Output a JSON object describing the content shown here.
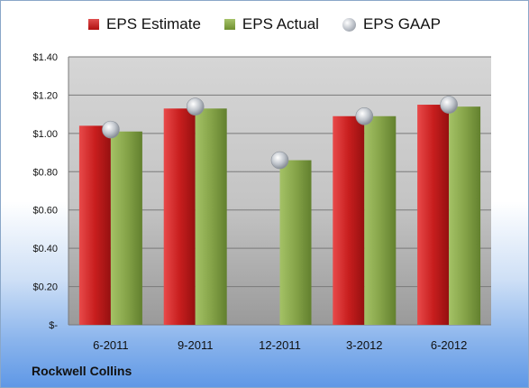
{
  "legend": {
    "estimate": "EPS Estimate",
    "actual": "EPS Actual",
    "gaap": "EPS GAAP"
  },
  "company": "Rockwell Collins",
  "colors": {
    "estimate": "#c81e1e",
    "actual": "#86a449",
    "gaap": "#b4b9c0"
  },
  "chart_data": {
    "type": "bar",
    "categories": [
      "6-2011",
      "9-2011",
      "12-2011",
      "3-2012",
      "6-2012"
    ],
    "series": [
      {
        "name": "EPS Estimate",
        "values": [
          1.04,
          1.13,
          null,
          1.09,
          1.15
        ]
      },
      {
        "name": "EPS Actual",
        "values": [
          1.01,
          1.13,
          0.86,
          1.09,
          1.14
        ]
      },
      {
        "name": "EPS GAAP",
        "values": [
          1.02,
          1.14,
          0.86,
          1.09,
          1.15
        ],
        "marker": "circle"
      }
    ],
    "ylim": [
      0,
      1.4
    ],
    "yticks": [
      0,
      0.2,
      0.4,
      0.6,
      0.8,
      1.0,
      1.2,
      1.4
    ],
    "ytick_labels": [
      "$-",
      "$0.20",
      "$0.40",
      "$0.60",
      "$0.80",
      "$1.00",
      "$1.20",
      "$1.40"
    ],
    "legend_position": "top",
    "grid": true
  }
}
